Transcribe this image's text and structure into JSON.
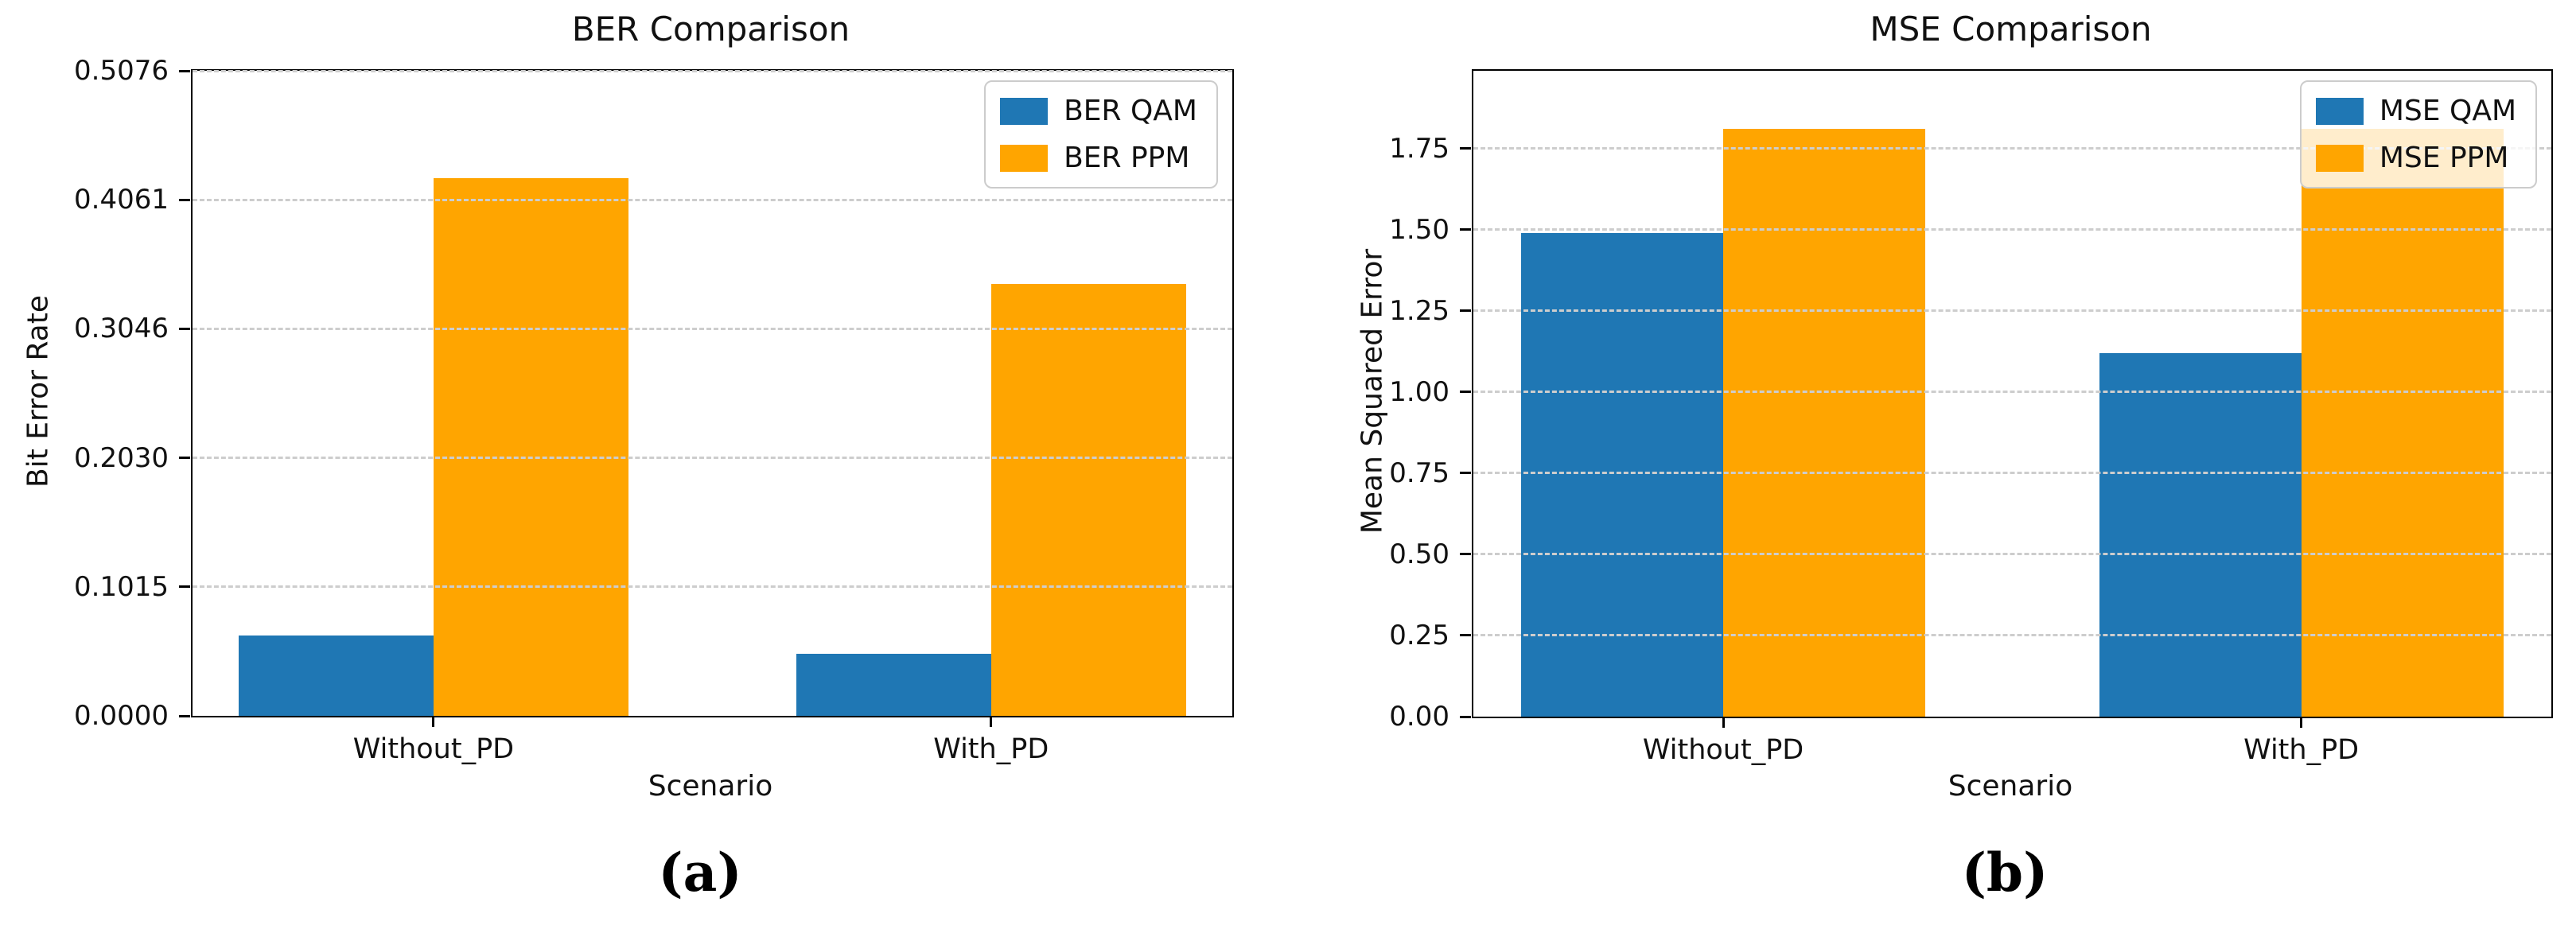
{
  "figure": {
    "captions": [
      "(a)",
      "(b)"
    ]
  },
  "chart_data": [
    {
      "type": "bar",
      "title": "BER Comparison",
      "xlabel": "Scenario",
      "ylabel": "Bit Error Rate",
      "categories": [
        "Without_PD",
        "With_PD"
      ],
      "series": [
        {
          "name": "BER QAM",
          "color": "#1f77b4",
          "values": [
            0.063,
            0.049
          ]
        },
        {
          "name": "BER PPM",
          "color": "#ffa500",
          "values": [
            0.423,
            0.34
          ]
        }
      ],
      "ytick_labels": [
        "0.0000",
        "0.1015",
        "0.2030",
        "0.3046",
        "0.4061",
        "0.5076"
      ],
      "ytick_values": [
        0.0,
        0.1015,
        0.203,
        0.3046,
        0.4061,
        0.5076
      ],
      "ylim": [
        0,
        0.5076
      ],
      "grid": "horizontal-dashed",
      "legend_position": "upper-right"
    },
    {
      "type": "bar",
      "title": "MSE Comparison",
      "xlabel": "Scenario",
      "ylabel": "Mean Squared Error",
      "categories": [
        "Without_PD",
        "With_PD"
      ],
      "series": [
        {
          "name": "MSE QAM",
          "color": "#1f77b4",
          "values": [
            1.49,
            1.12
          ]
        },
        {
          "name": "MSE PPM",
          "color": "#ffa500",
          "values": [
            1.81,
            1.81
          ]
        }
      ],
      "ytick_labels": [
        "0.00",
        "0.25",
        "0.50",
        "0.75",
        "1.00",
        "1.25",
        "1.50",
        "1.75"
      ],
      "ytick_values": [
        0.0,
        0.25,
        0.5,
        0.75,
        1.0,
        1.25,
        1.5,
        1.75
      ],
      "ylim": [
        0,
        1.99
      ],
      "grid": "horizontal-dashed",
      "legend_position": "upper-right"
    }
  ]
}
